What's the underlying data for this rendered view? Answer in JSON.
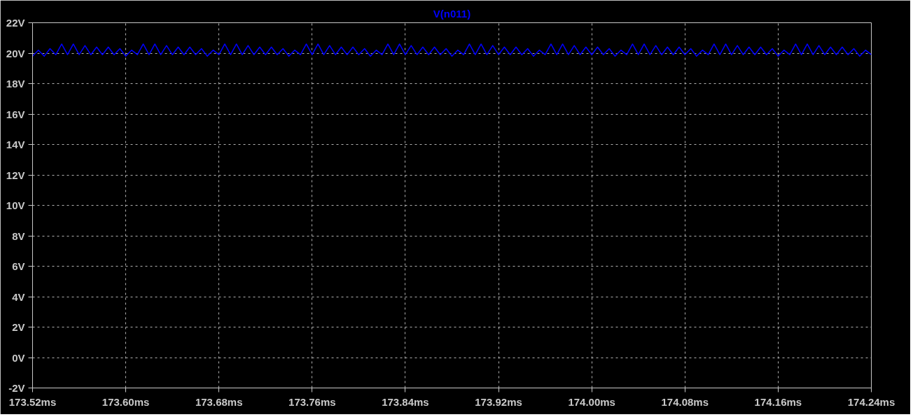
{
  "chart_data": {
    "type": "line",
    "title": "V(n011)",
    "x": [
      173.52,
      173.525,
      173.53,
      173.535,
      173.54,
      173.545,
      173.55,
      173.555,
      173.56,
      173.565,
      173.57,
      173.575,
      173.58,
      173.585,
      173.59,
      173.595,
      173.6,
      173.605,
      173.61,
      173.615,
      173.62,
      173.625,
      173.63,
      173.635,
      173.64,
      173.645,
      173.65,
      173.655,
      173.66,
      173.665,
      173.67,
      173.675,
      173.68,
      173.685,
      173.69,
      173.695,
      173.7,
      173.705,
      173.71,
      173.715,
      173.72,
      173.725,
      173.73,
      173.735,
      173.74,
      173.745,
      173.75,
      173.755,
      173.76,
      173.765,
      173.77,
      173.775,
      173.78,
      173.785,
      173.79,
      173.795,
      173.8,
      173.805,
      173.81,
      173.815,
      173.82,
      173.825,
      173.83,
      173.835,
      173.84,
      173.845,
      173.85,
      173.855,
      173.86,
      173.865,
      173.87,
      173.875,
      173.88,
      173.885,
      173.89,
      173.895,
      173.9,
      173.905,
      173.91,
      173.915,
      173.92,
      173.925,
      173.93,
      173.935,
      173.94,
      173.945,
      173.95,
      173.955,
      173.96,
      173.965,
      173.97,
      173.975,
      173.98,
      173.985,
      173.99,
      173.995,
      174.0,
      174.005,
      174.01,
      174.015,
      174.02,
      174.025,
      174.03,
      174.035,
      174.04,
      174.045,
      174.05,
      174.055,
      174.06,
      174.065,
      174.07,
      174.075,
      174.08,
      174.085,
      174.09,
      174.095,
      174.1,
      174.105,
      174.11,
      174.115,
      174.12,
      174.125,
      174.13,
      174.135,
      174.14,
      174.145,
      174.15,
      174.155,
      174.16,
      174.165,
      174.17,
      174.175,
      174.18,
      174.185,
      174.19,
      174.195,
      174.2,
      174.205,
      174.21,
      174.215,
      174.22,
      174.225,
      174.23,
      174.235,
      174.24
    ],
    "series": [
      {
        "color": "#0000ff",
        "values": [
          19.8,
          20.2,
          19.8,
          20.3,
          19.9,
          20.6,
          19.9,
          20.6,
          19.9,
          20.5,
          19.9,
          20.4,
          19.9,
          20.4,
          19.9,
          20.3,
          19.8,
          20.2,
          19.9,
          20.6,
          19.9,
          20.6,
          19.9,
          20.5,
          19.9,
          20.4,
          19.9,
          20.4,
          19.9,
          20.3,
          19.8,
          20.2,
          19.9,
          20.6,
          19.9,
          20.6,
          19.9,
          20.5,
          19.9,
          20.4,
          19.9,
          20.4,
          19.9,
          20.3,
          19.8,
          20.2,
          19.9,
          20.6,
          19.9,
          20.6,
          19.9,
          20.5,
          19.9,
          20.4,
          19.9,
          20.4,
          19.9,
          20.3,
          19.8,
          20.2,
          19.9,
          20.6,
          19.9,
          20.6,
          19.9,
          20.5,
          19.9,
          20.4,
          19.9,
          20.4,
          19.9,
          20.3,
          19.8,
          20.2,
          19.9,
          20.6,
          19.9,
          20.6,
          19.9,
          20.5,
          19.9,
          20.4,
          19.9,
          20.4,
          19.9,
          20.3,
          19.8,
          20.2,
          19.9,
          20.6,
          19.9,
          20.6,
          19.9,
          20.5,
          19.9,
          20.4,
          19.9,
          20.4,
          19.9,
          20.3,
          19.8,
          20.2,
          19.9,
          20.6,
          19.9,
          20.6,
          19.9,
          20.5,
          19.9,
          20.4,
          19.9,
          20.4,
          19.9,
          20.3,
          19.8,
          20.2,
          19.9,
          20.6,
          19.9,
          20.6,
          19.9,
          20.5,
          19.9,
          20.4,
          19.9,
          20.4,
          19.9,
          20.3,
          19.8,
          20.2,
          19.9,
          20.6,
          19.9,
          20.6,
          19.9,
          20.5,
          19.9,
          20.4,
          19.9,
          20.4,
          19.9,
          20.3,
          19.8,
          20.2,
          19.9
        ]
      }
    ],
    "xlim": [
      173.52,
      174.24
    ],
    "xticks": [
      {
        "value": 173.52,
        "label": "173.52ms"
      },
      {
        "value": 173.6,
        "label": "173.60ms"
      },
      {
        "value": 173.68,
        "label": "173.68ms"
      },
      {
        "value": 173.76,
        "label": "173.76ms"
      },
      {
        "value": 173.84,
        "label": "173.84ms"
      },
      {
        "value": 173.92,
        "label": "173.92ms"
      },
      {
        "value": 174.0,
        "label": "174.00ms"
      },
      {
        "value": 174.08,
        "label": "174.08ms"
      },
      {
        "value": 174.16,
        "label": "174.16ms"
      },
      {
        "value": 174.24,
        "label": "174.24ms"
      }
    ],
    "ylim": [
      -2,
      22
    ],
    "yticks": [
      {
        "value": -2,
        "label": "-2V"
      },
      {
        "value": 0,
        "label": "0V"
      },
      {
        "value": 2,
        "label": "2V"
      },
      {
        "value": 4,
        "label": "4V"
      },
      {
        "value": 6,
        "label": "6V"
      },
      {
        "value": 8,
        "label": "8V"
      },
      {
        "value": 10,
        "label": "10V"
      },
      {
        "value": 12,
        "label": "12V"
      },
      {
        "value": 14,
        "label": "14V"
      },
      {
        "value": 16,
        "label": "16V"
      },
      {
        "value": 18,
        "label": "18V"
      },
      {
        "value": 20,
        "label": "20V"
      },
      {
        "value": 22,
        "label": "22V"
      }
    ],
    "grid": true,
    "line_style": "solid"
  }
}
